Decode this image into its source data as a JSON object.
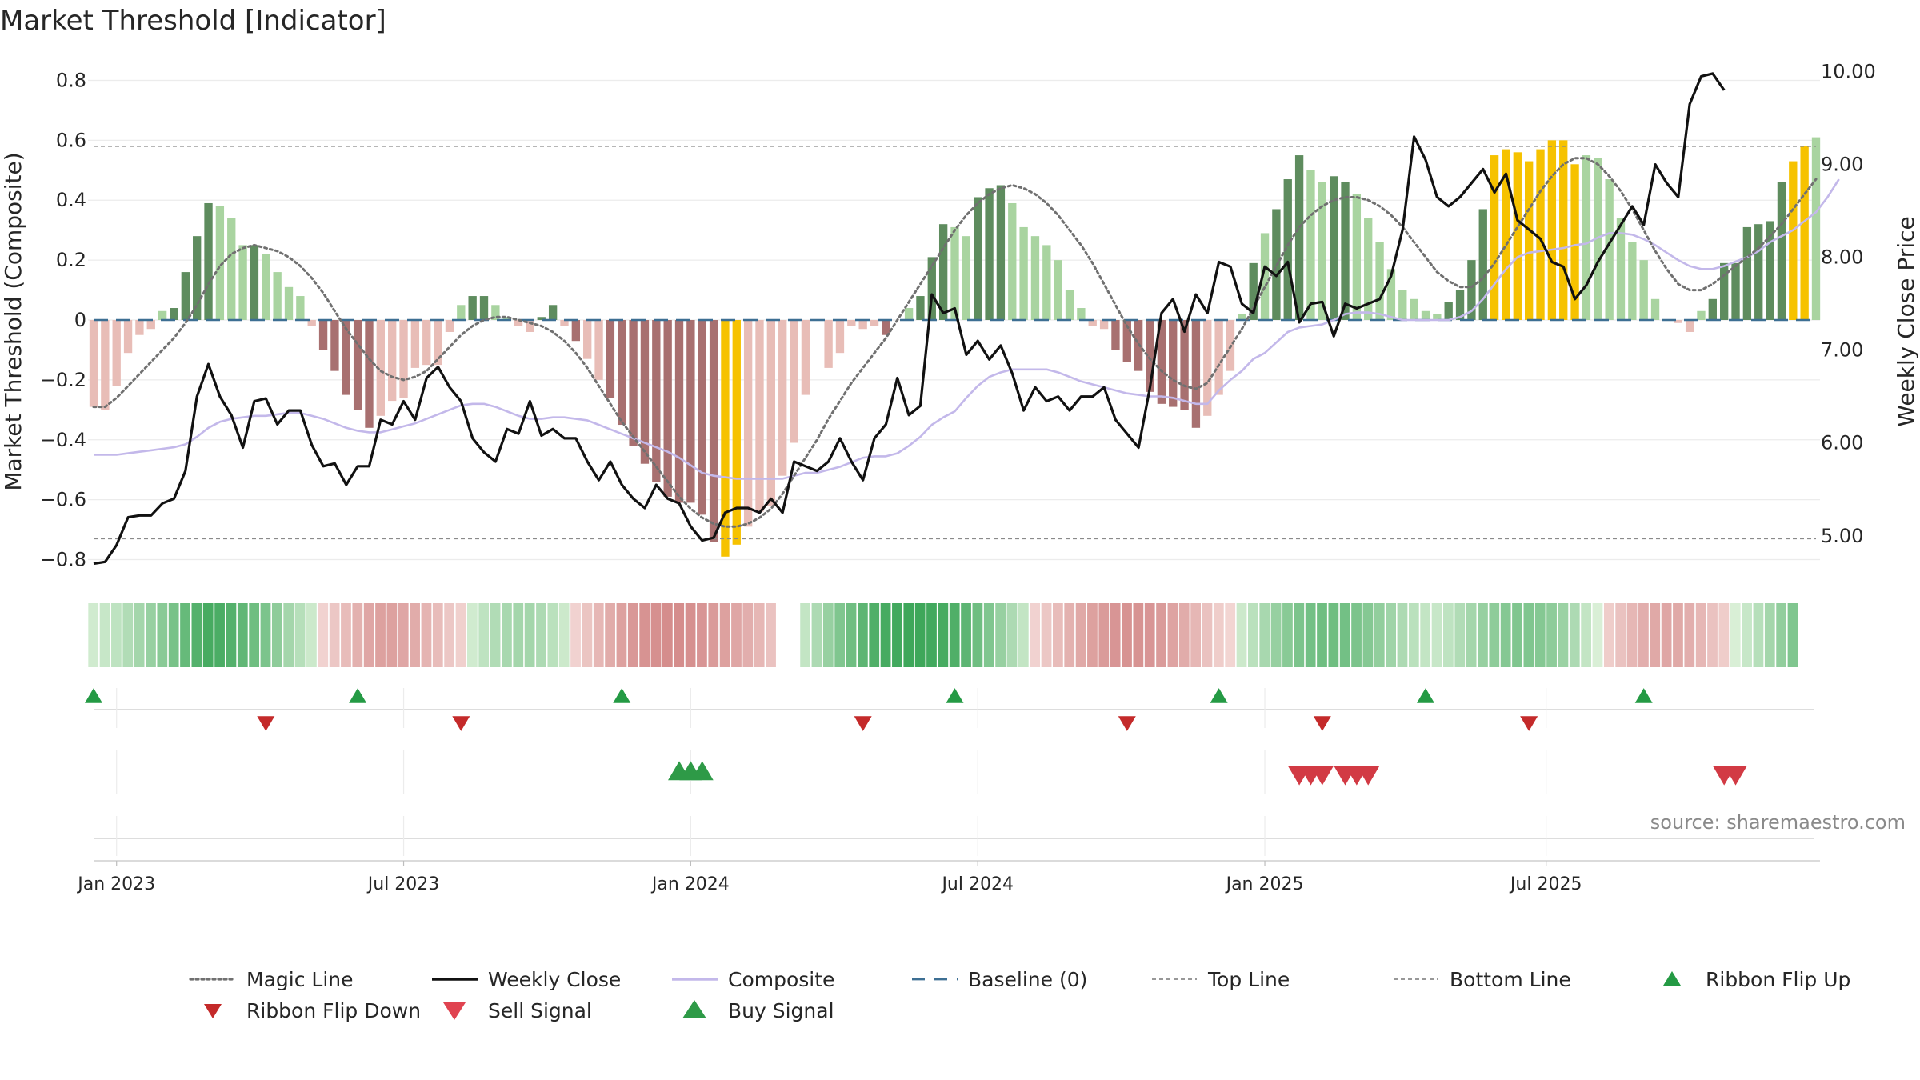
{
  "chart_data": {
    "type": "bar",
    "title": "Market Threshold [Indicator]",
    "source": "source: sharemaestro.com",
    "ylabel": "Market Threshold (Composite)",
    "y2label": "Weekly Close Price",
    "ylim": [
      -0.86,
      0.86
    ],
    "y2lim": [
      4.55,
      10.1
    ],
    "yticks": [
      "0.8",
      "0.6",
      "0.4",
      "0.2",
      "0",
      "−0.2",
      "−0.4",
      "−0.6",
      "−0.8"
    ],
    "ytick_values": [
      0.8,
      0.6,
      0.4,
      0.2,
      0,
      -0.2,
      -0.4,
      -0.6,
      -0.8
    ],
    "y2ticks": [
      "10.00",
      "9.00",
      "8.00",
      "7.00",
      "6.00",
      "5.00"
    ],
    "y2tick_values": [
      10,
      9,
      8,
      7,
      6,
      5
    ],
    "xticks": [
      "Jan 2023",
      "Jul 2023",
      "Jan 2024",
      "Jul 2024",
      "Jan 2025",
      "Jul 2025"
    ],
    "xtick_weeks": [
      2,
      27,
      52,
      77,
      102,
      126.5
    ],
    "top_line": 0.58,
    "bottom_line": -0.73,
    "grid": true,
    "legend_position": "bottom",
    "colors": {
      "green_dark": "#5e8c5e",
      "green_light": "#a9d4a0",
      "red_dark": "#a87070",
      "red_light": "#e8bdb7",
      "gold": "#f6c200",
      "close": "#111111",
      "composite": "#c3b8ea",
      "magic": "#707070",
      "baseline": "#3d6f93",
      "buy": "#2e9a47",
      "sell": "#d23a44",
      "ribbon_flip_up": "#249a44",
      "ribbon_flip_down": "#c42a2a"
    },
    "legend": [
      {
        "label": "Magic Line",
        "kind": "dotted",
        "color": "#707070"
      },
      {
        "label": "Weekly Close",
        "kind": "solid",
        "color": "#111111"
      },
      {
        "label": "Composite",
        "kind": "solid",
        "color": "#c3b8ea"
      },
      {
        "label": "Baseline (0)",
        "kind": "dashed",
        "color": "#3d6f93"
      },
      {
        "label": "Top Line",
        "kind": "thin-dashed",
        "color": "#8a8a8a"
      },
      {
        "label": "Bottom Line",
        "kind": "thin-dashed",
        "color": "#8a8a8a"
      },
      {
        "label": "Ribbon Flip Up",
        "kind": "tri-up-small",
        "color": "#249a44"
      },
      {
        "label": "Ribbon Flip Down",
        "kind": "tri-down-small",
        "color": "#c42a2a"
      },
      {
        "label": "Sell Signal",
        "kind": "tri-down",
        "color": "#e04350"
      },
      {
        "label": "Buy Signal",
        "kind": "tri-up",
        "color": "#2e9a47"
      }
    ],
    "bars": [
      -0.29,
      -0.3,
      -0.22,
      -0.11,
      -0.05,
      -0.03,
      0.03,
      0.04,
      0.16,
      0.28,
      0.39,
      0.38,
      0.34,
      0.25,
      0.25,
      0.22,
      0.16,
      0.11,
      0.08,
      -0.02,
      -0.1,
      -0.17,
      -0.25,
      -0.3,
      -0.36,
      -0.32,
      -0.27,
      -0.26,
      -0.16,
      -0.15,
      -0.15,
      -0.04,
      0.05,
      0.08,
      0.08,
      0.05,
      0.01,
      -0.02,
      -0.04,
      0.01,
      0.05,
      -0.02,
      -0.07,
      -0.13,
      -0.2,
      -0.26,
      -0.35,
      -0.42,
      -0.48,
      -0.54,
      -0.59,
      -0.61,
      -0.61,
      -0.65,
      -0.74,
      -0.79,
      -0.75,
      -0.69,
      -0.64,
      -0.62,
      -0.52,
      -0.41,
      -0.25,
      0.0,
      -0.16,
      -0.11,
      -0.02,
      -0.03,
      -0.02,
      -0.05,
      0.0,
      0.04,
      0.08,
      0.21,
      0.32,
      0.31,
      0.28,
      0.41,
      0.44,
      0.45,
      0.39,
      0.31,
      0.28,
      0.25,
      0.2,
      0.1,
      0.04,
      -0.02,
      -0.03,
      -0.1,
      -0.14,
      -0.17,
      -0.24,
      -0.28,
      -0.29,
      -0.3,
      -0.36,
      -0.32,
      -0.25,
      -0.17,
      0.02,
      0.19,
      0.29,
      0.37,
      0.47,
      0.55,
      0.5,
      0.46,
      0.48,
      0.46,
      0.42,
      0.34,
      0.26,
      0.17,
      0.1,
      0.07,
      0.03,
      0.02,
      0.06,
      0.1,
      0.2,
      0.37,
      0.55,
      0.57,
      0.56,
      0.53,
      0.57,
      0.6,
      0.6,
      0.52,
      0.55,
      0.54,
      0.47,
      0.34,
      0.26,
      0.2,
      0.07,
      0.0,
      -0.01,
      -0.04,
      0.03,
      0.07,
      0.19,
      0.19,
      0.31,
      0.32,
      0.33,
      0.46,
      0.53,
      0.58,
      0.61
    ],
    "bar_colors": [
      "rl",
      "rl",
      "rl",
      "rl",
      "rl",
      "rl",
      "gl",
      "gd",
      "gd",
      "gd",
      "gd",
      "gl",
      "gl",
      "gl",
      "gd",
      "gl",
      "gl",
      "gl",
      "gl",
      "rl",
      "rd",
      "rd",
      "rd",
      "rd",
      "rd",
      "rl",
      "rl",
      "rl",
      "rl",
      "rl",
      "rl",
      "rl",
      "gl",
      "gd",
      "gd",
      "gl",
      "gl",
      "rl",
      "rl",
      "gd",
      "gd",
      "rl",
      "rd",
      "rl",
      "rl",
      "rd",
      "rd",
      "rd",
      "rd",
      "rd",
      "rd",
      "rd",
      "rd",
      "rd",
      "rd",
      "y",
      "y",
      "rl",
      "rl",
      "rl",
      "rl",
      "rl",
      "rl",
      "rl",
      "rl",
      "rl",
      "rl",
      "rl",
      "rl",
      "rd",
      "gl",
      "gl",
      "gd",
      "gd",
      "gd",
      "gl",
      "gl",
      "gd",
      "gd",
      "gd",
      "gl",
      "gl",
      "gl",
      "gl",
      "gl",
      "gl",
      "gl",
      "rl",
      "rl",
      "rd",
      "rd",
      "rd",
      "rd",
      "rd",
      "rd",
      "rd",
      "rd",
      "rl",
      "rl",
      "rl",
      "gl",
      "gd",
      "gl",
      "gd",
      "gd",
      "gd",
      "gl",
      "gl",
      "gd",
      "gd",
      "gl",
      "gl",
      "gl",
      "gl",
      "gl",
      "gl",
      "gl",
      "gl",
      "gd",
      "gd",
      "gd",
      "gd",
      "y",
      "y",
      "y",
      "y",
      "y",
      "y",
      "y",
      "y",
      "gl",
      "gl",
      "gl",
      "gl",
      "gl",
      "gl",
      "gl",
      "rl",
      "rl",
      "rl",
      "gl",
      "gd",
      "gd",
      "gd",
      "gd",
      "gd",
      "gd",
      "gd",
      "y",
      "y"
    ],
    "weekly_close": [
      4.7,
      4.72,
      4.9,
      5.2,
      5.22,
      5.22,
      5.35,
      5.4,
      5.7,
      6.5,
      6.85,
      6.5,
      6.3,
      5.95,
      6.45,
      6.48,
      6.2,
      6.35,
      6.35,
      5.98,
      5.75,
      5.78,
      5.55,
      5.75,
      5.75,
      6.25,
      6.2,
      6.45,
      6.25,
      6.7,
      6.82,
      6.6,
      6.45,
      6.05,
      5.9,
      5.8,
      6.15,
      6.1,
      6.45,
      6.08,
      6.15,
      6.05,
      6.05,
      5.8,
      5.6,
      5.8,
      5.55,
      5.4,
      5.3,
      5.55,
      5.4,
      5.35,
      5.1,
      4.95,
      4.98,
      5.25,
      5.3,
      5.3,
      5.25,
      5.4,
      5.25,
      5.8,
      5.75,
      5.7,
      5.8,
      6.05,
      5.8,
      5.6,
      6.05,
      6.2,
      6.7,
      6.3,
      6.4,
      7.6,
      7.4,
      7.45,
      6.95,
      7.1,
      6.9,
      7.05,
      6.75,
      6.35,
      6.6,
      6.45,
      6.5,
      6.35,
      6.5,
      6.5,
      6.6,
      6.25,
      6.1,
      5.95,
      6.6,
      7.4,
      7.55,
      7.2,
      7.6,
      7.4,
      7.95,
      7.9,
      7.5,
      7.4,
      7.9,
      7.8,
      7.95,
      7.3,
      7.5,
      7.52,
      7.15,
      7.5,
      7.45,
      7.5,
      7.55,
      7.8,
      8.3,
      9.3,
      9.05,
      8.65,
      8.55,
      8.65,
      8.8,
      8.95,
      8.7,
      8.9,
      8.4,
      8.3,
      8.2,
      7.95,
      7.9,
      7.55,
      7.7,
      7.95,
      8.15,
      8.35,
      8.55,
      8.35,
      9.0,
      8.8,
      8.65,
      9.65,
      9.95,
      9.98,
      9.8
    ],
    "composite": [
      -0.45,
      -0.45,
      -0.45,
      -0.445,
      -0.44,
      -0.435,
      -0.43,
      -0.425,
      -0.415,
      -0.39,
      -0.36,
      -0.34,
      -0.33,
      -0.325,
      -0.32,
      -0.32,
      -0.315,
      -0.31,
      -0.31,
      -0.32,
      -0.33,
      -0.345,
      -0.36,
      -0.37,
      -0.375,
      -0.375,
      -0.365,
      -0.355,
      -0.345,
      -0.33,
      -0.315,
      -0.3,
      -0.285,
      -0.28,
      -0.28,
      -0.29,
      -0.305,
      -0.32,
      -0.33,
      -0.33,
      -0.325,
      -0.325,
      -0.33,
      -0.335,
      -0.35,
      -0.365,
      -0.38,
      -0.395,
      -0.41,
      -0.425,
      -0.44,
      -0.46,
      -0.485,
      -0.51,
      -0.52,
      -0.525,
      -0.53,
      -0.53,
      -0.53,
      -0.53,
      -0.53,
      -0.52,
      -0.51,
      -0.51,
      -0.5,
      -0.49,
      -0.475,
      -0.46,
      -0.455,
      -0.455,
      -0.445,
      -0.42,
      -0.39,
      -0.35,
      -0.325,
      -0.305,
      -0.26,
      -0.22,
      -0.19,
      -0.175,
      -0.165,
      -0.165,
      -0.165,
      -0.165,
      -0.175,
      -0.19,
      -0.205,
      -0.215,
      -0.225,
      -0.235,
      -0.245,
      -0.25,
      -0.255,
      -0.255,
      -0.26,
      -0.27,
      -0.28,
      -0.28,
      -0.235,
      -0.2,
      -0.17,
      -0.13,
      -0.11,
      -0.075,
      -0.04,
      -0.025,
      -0.02,
      -0.015,
      0.0,
      0.02,
      0.025,
      0.025,
      0.02,
      0.01,
      0.0,
      0.0,
      0.0,
      0.0,
      0.0,
      0.01,
      0.03,
      0.07,
      0.12,
      0.17,
      0.21,
      0.225,
      0.23,
      0.235,
      0.24,
      0.25,
      0.255,
      0.275,
      0.29,
      0.29,
      0.285,
      0.27,
      0.25,
      0.225,
      0.2,
      0.18,
      0.17,
      0.17,
      0.18,
      0.195,
      0.21,
      0.23,
      0.26,
      0.28,
      0.3,
      0.33,
      0.36,
      0.41,
      0.47
    ],
    "magic_line": [
      -0.29,
      -0.29,
      -0.26,
      -0.22,
      -0.18,
      -0.14,
      -0.1,
      -0.06,
      -0.01,
      0.05,
      0.12,
      0.18,
      0.22,
      0.24,
      0.25,
      0.24,
      0.23,
      0.21,
      0.18,
      0.14,
      0.09,
      0.03,
      -0.03,
      -0.08,
      -0.13,
      -0.17,
      -0.19,
      -0.2,
      -0.19,
      -0.17,
      -0.13,
      -0.09,
      -0.05,
      -0.02,
      0.0,
      0.01,
      0.01,
      0.0,
      -0.01,
      -0.02,
      -0.04,
      -0.07,
      -0.11,
      -0.16,
      -0.22,
      -0.28,
      -0.34,
      -0.39,
      -0.44,
      -0.49,
      -0.54,
      -0.59,
      -0.63,
      -0.66,
      -0.68,
      -0.69,
      -0.69,
      -0.68,
      -0.66,
      -0.63,
      -0.58,
      -0.52,
      -0.46,
      -0.4,
      -0.33,
      -0.27,
      -0.21,
      -0.16,
      -0.11,
      -0.06,
      0.0,
      0.06,
      0.12,
      0.18,
      0.24,
      0.3,
      0.35,
      0.39,
      0.42,
      0.44,
      0.45,
      0.44,
      0.42,
      0.39,
      0.35,
      0.3,
      0.25,
      0.19,
      0.12,
      0.05,
      -0.02,
      -0.08,
      -0.13,
      -0.17,
      -0.2,
      -0.22,
      -0.23,
      -0.21,
      -0.15,
      -0.09,
      -0.03,
      0.04,
      0.11,
      0.18,
      0.25,
      0.31,
      0.35,
      0.38,
      0.4,
      0.41,
      0.41,
      0.4,
      0.38,
      0.35,
      0.31,
      0.26,
      0.21,
      0.16,
      0.13,
      0.11,
      0.11,
      0.14,
      0.19,
      0.25,
      0.31,
      0.37,
      0.43,
      0.48,
      0.52,
      0.54,
      0.54,
      0.52,
      0.48,
      0.43,
      0.37,
      0.3,
      0.23,
      0.17,
      0.12,
      0.1,
      0.1,
      0.12,
      0.15,
      0.18,
      0.21,
      0.24,
      0.28,
      0.32,
      0.37,
      0.42,
      0.47
    ],
    "ribbon": [
      0.02,
      0.04,
      0.06,
      0.09,
      0.12,
      0.15,
      0.18,
      0.22,
      0.26,
      0.3,
      0.33,
      0.32,
      0.3,
      0.27,
      0.24,
      0.21,
      0.17,
      0.12,
      0.08,
      0.03,
      -0.02,
      -0.06,
      -0.1,
      -0.14,
      -0.18,
      -0.2,
      -0.2,
      -0.18,
      -0.16,
      -0.13,
      -0.1,
      -0.06,
      -0.03,
      0.02,
      0.06,
      0.09,
      0.11,
      0.12,
      0.12,
      0.1,
      0.07,
      0.03,
      -0.02,
      -0.07,
      -0.12,
      -0.16,
      -0.2,
      -0.23,
      -0.25,
      -0.26,
      -0.27,
      -0.27,
      -0.26,
      -0.24,
      -0.22,
      -0.2,
      -0.18,
      -0.15,
      -0.12,
      -0.08,
      -0.04,
      0.0,
      0.05,
      0.1,
      0.15,
      0.2,
      0.24,
      0.28,
      0.31,
      0.33,
      0.34,
      0.35,
      0.35,
      0.34,
      0.33,
      0.31,
      0.28,
      0.24,
      0.2,
      0.15,
      0.1,
      0.05,
      -0.02,
      -0.06,
      -0.1,
      -0.14,
      -0.17,
      -0.2,
      -0.22,
      -0.24,
      -0.25,
      -0.25,
      -0.24,
      -0.22,
      -0.19,
      -0.16,
      -0.12,
      -0.08,
      -0.04,
      -0.01,
      0.03,
      0.07,
      0.11,
      0.15,
      0.18,
      0.21,
      0.23,
      0.24,
      0.24,
      0.23,
      0.21,
      0.19,
      0.16,
      0.13,
      0.1,
      0.07,
      0.05,
      0.04,
      0.06,
      0.09,
      0.12,
      0.15,
      0.17,
      0.19,
      0.2,
      0.2,
      0.19,
      0.17,
      0.14,
      0.1,
      0.05,
      0.0,
      -0.04,
      -0.08,
      -0.12,
      -0.15,
      -0.17,
      -0.18,
      -0.17,
      -0.15,
      -0.12,
      -0.08,
      -0.04,
      0.0,
      0.04,
      0.08,
      0.12,
      0.16,
      0.2
    ],
    "ribbon_gaps": [
      60,
      61
    ],
    "ribbon_flip_up": [
      0,
      23,
      46,
      75,
      98,
      116,
      135
    ],
    "ribbon_flip_down": [
      15,
      32,
      67,
      90,
      107,
      125
    ],
    "buy_signals": [
      51,
      52,
      53
    ],
    "sell_signals": [
      105,
      106,
      107,
      109,
      110,
      111,
      142,
      143
    ]
  }
}
